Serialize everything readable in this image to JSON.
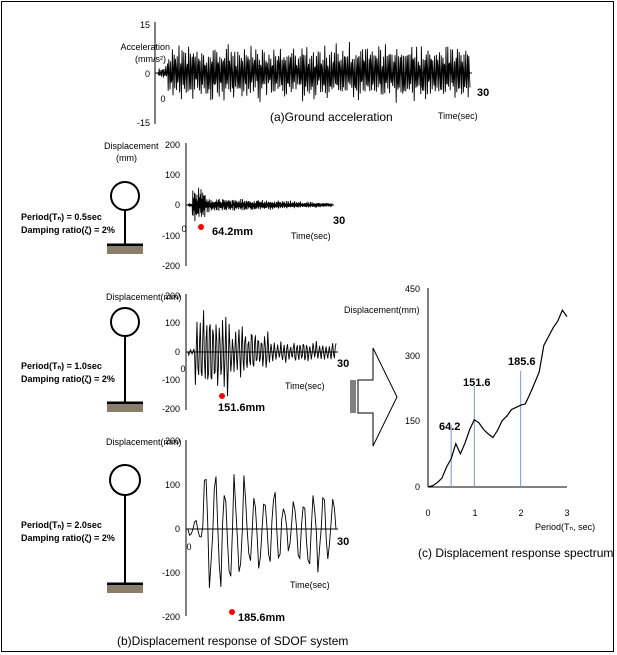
{
  "panel_a": {
    "ylabel_line1": "Acceleration",
    "ylabel_line2": "(mm/s²)",
    "ticks_y": [
      "15",
      "0",
      "-15"
    ],
    "origin_label": "0",
    "x_end_label": "30",
    "xlabel": "Time(sec)",
    "caption": "(a)Ground acceleration"
  },
  "panel_b": {
    "caption": "(b)Displacement response of SDOF system",
    "rows": [
      {
        "ylabel_line1": "Displacement",
        "ylabel_line2": "(mm)",
        "ticks_y": [
          "200",
          "100",
          "0",
          "-100",
          "-200"
        ],
        "origin_label": "0",
        "x_end_label": "30",
        "xlabel": "Time(sec)",
        "peak_label": "64.2mm",
        "param_line1": "Period(Tₙ) = 0.5sec",
        "param_line2": "Damping ratio(ζ) = 2%"
      },
      {
        "ylabel_line1": "Displacement(mm)",
        "ylabel_line2": "",
        "ticks_y": [
          "200",
          "100",
          "0",
          "-100",
          "-200"
        ],
        "origin_label": "0",
        "x_end_label": "30",
        "xlabel": "Time(sec)",
        "peak_label": "151.6mm",
        "param_line1": "Period(Tₙ) = 1.0sec",
        "param_line2": "Damping ratio(ζ) = 2%"
      },
      {
        "ylabel_line1": "Displacement(mm)",
        "ylabel_line2": "",
        "ticks_y": [
          "200",
          "100",
          "0",
          "-100",
          "-200"
        ],
        "origin_label": "0",
        "x_end_label": "30",
        "xlabel": "Time(sec)",
        "peak_label": "185.6mm",
        "param_line1": "Period(Tₙ) = 2.0sec",
        "param_line2": "Damping ratio(ζ) = 2%"
      }
    ]
  },
  "panel_c": {
    "ylabel": "Displacement(mm)",
    "xlabel": "Period(Tₙ, sec)",
    "ticks_y": [
      "450",
      "300",
      "150",
      "0"
    ],
    "ticks_x": [
      "0",
      "1",
      "2",
      "3"
    ],
    "caption": "(c) Displacement response spectrum",
    "annotations": [
      "64.2",
      "151.6",
      "185.6"
    ]
  },
  "chart_data": {
    "type": "line",
    "title": "(c) Displacement response spectrum",
    "xlabel": "Period(Tₙ, sec)",
    "ylabel": "Displacement(mm)",
    "xlim": [
      0,
      3
    ],
    "ylim": [
      0,
      450
    ],
    "x": [
      0,
      0.1,
      0.2,
      0.3,
      0.4,
      0.5,
      0.6,
      0.7,
      0.8,
      0.9,
      1.0,
      1.1,
      1.2,
      1.3,
      1.4,
      1.5,
      1.6,
      1.7,
      1.8,
      1.9,
      2.0,
      2.1,
      2.2,
      2.3,
      2.4,
      2.5,
      2.6,
      2.7,
      2.8,
      2.9,
      3.0
    ],
    "y": [
      0,
      3,
      10,
      20,
      45,
      64,
      98,
      75,
      100,
      130,
      152,
      145,
      130,
      120,
      112,
      128,
      150,
      160,
      175,
      180,
      185,
      188,
      210,
      235,
      260,
      320,
      340,
      360,
      375,
      400,
      385
    ],
    "highlights": [
      {
        "x": 0.5,
        "y": 64.2
      },
      {
        "x": 1.0,
        "y": 151.6
      },
      {
        "x": 2.0,
        "y": 185.6
      }
    ],
    "colors": {
      "curve": "#000000",
      "marker": "#ff0000",
      "guide": "#7b96c9"
    }
  }
}
